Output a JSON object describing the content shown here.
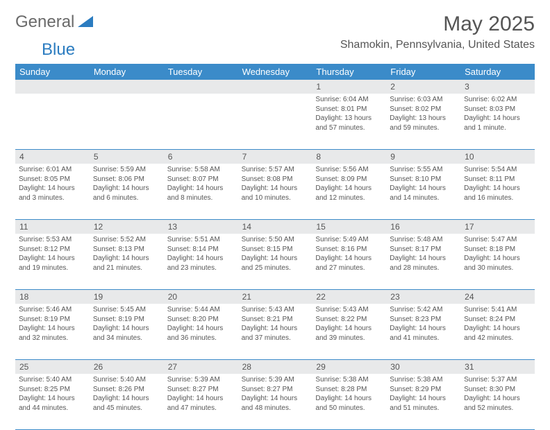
{
  "logo": {
    "text1": "General",
    "text2": "Blue"
  },
  "title": {
    "month": "May 2025",
    "location": "Shamokin, Pennsylvania, United States"
  },
  "weekdays": [
    "Sunday",
    "Monday",
    "Tuesday",
    "Wednesday",
    "Thursday",
    "Friday",
    "Saturday"
  ],
  "colors": {
    "header_bg": "#3b8bc9",
    "header_text": "#ffffff",
    "daynum_bg": "#e8e9ea",
    "text": "#555555",
    "logo_gray": "#6a6a6a",
    "logo_blue": "#2b7cc0",
    "border": "#3b8bc9"
  },
  "weeks": [
    [
      {
        "day": "",
        "lines": []
      },
      {
        "day": "",
        "lines": []
      },
      {
        "day": "",
        "lines": []
      },
      {
        "day": "",
        "lines": []
      },
      {
        "day": "1",
        "lines": [
          "Sunrise: 6:04 AM",
          "Sunset: 8:01 PM",
          "Daylight: 13 hours",
          "and 57 minutes."
        ]
      },
      {
        "day": "2",
        "lines": [
          "Sunrise: 6:03 AM",
          "Sunset: 8:02 PM",
          "Daylight: 13 hours",
          "and 59 minutes."
        ]
      },
      {
        "day": "3",
        "lines": [
          "Sunrise: 6:02 AM",
          "Sunset: 8:03 PM",
          "Daylight: 14 hours",
          "and 1 minute."
        ]
      }
    ],
    [
      {
        "day": "4",
        "lines": [
          "Sunrise: 6:01 AM",
          "Sunset: 8:05 PM",
          "Daylight: 14 hours",
          "and 3 minutes."
        ]
      },
      {
        "day": "5",
        "lines": [
          "Sunrise: 5:59 AM",
          "Sunset: 8:06 PM",
          "Daylight: 14 hours",
          "and 6 minutes."
        ]
      },
      {
        "day": "6",
        "lines": [
          "Sunrise: 5:58 AM",
          "Sunset: 8:07 PM",
          "Daylight: 14 hours",
          "and 8 minutes."
        ]
      },
      {
        "day": "7",
        "lines": [
          "Sunrise: 5:57 AM",
          "Sunset: 8:08 PM",
          "Daylight: 14 hours",
          "and 10 minutes."
        ]
      },
      {
        "day": "8",
        "lines": [
          "Sunrise: 5:56 AM",
          "Sunset: 8:09 PM",
          "Daylight: 14 hours",
          "and 12 minutes."
        ]
      },
      {
        "day": "9",
        "lines": [
          "Sunrise: 5:55 AM",
          "Sunset: 8:10 PM",
          "Daylight: 14 hours",
          "and 14 minutes."
        ]
      },
      {
        "day": "10",
        "lines": [
          "Sunrise: 5:54 AM",
          "Sunset: 8:11 PM",
          "Daylight: 14 hours",
          "and 16 minutes."
        ]
      }
    ],
    [
      {
        "day": "11",
        "lines": [
          "Sunrise: 5:53 AM",
          "Sunset: 8:12 PM",
          "Daylight: 14 hours",
          "and 19 minutes."
        ]
      },
      {
        "day": "12",
        "lines": [
          "Sunrise: 5:52 AM",
          "Sunset: 8:13 PM",
          "Daylight: 14 hours",
          "and 21 minutes."
        ]
      },
      {
        "day": "13",
        "lines": [
          "Sunrise: 5:51 AM",
          "Sunset: 8:14 PM",
          "Daylight: 14 hours",
          "and 23 minutes."
        ]
      },
      {
        "day": "14",
        "lines": [
          "Sunrise: 5:50 AM",
          "Sunset: 8:15 PM",
          "Daylight: 14 hours",
          "and 25 minutes."
        ]
      },
      {
        "day": "15",
        "lines": [
          "Sunrise: 5:49 AM",
          "Sunset: 8:16 PM",
          "Daylight: 14 hours",
          "and 27 minutes."
        ]
      },
      {
        "day": "16",
        "lines": [
          "Sunrise: 5:48 AM",
          "Sunset: 8:17 PM",
          "Daylight: 14 hours",
          "and 28 minutes."
        ]
      },
      {
        "day": "17",
        "lines": [
          "Sunrise: 5:47 AM",
          "Sunset: 8:18 PM",
          "Daylight: 14 hours",
          "and 30 minutes."
        ]
      }
    ],
    [
      {
        "day": "18",
        "lines": [
          "Sunrise: 5:46 AM",
          "Sunset: 8:19 PM",
          "Daylight: 14 hours",
          "and 32 minutes."
        ]
      },
      {
        "day": "19",
        "lines": [
          "Sunrise: 5:45 AM",
          "Sunset: 8:19 PM",
          "Daylight: 14 hours",
          "and 34 minutes."
        ]
      },
      {
        "day": "20",
        "lines": [
          "Sunrise: 5:44 AM",
          "Sunset: 8:20 PM",
          "Daylight: 14 hours",
          "and 36 minutes."
        ]
      },
      {
        "day": "21",
        "lines": [
          "Sunrise: 5:43 AM",
          "Sunset: 8:21 PM",
          "Daylight: 14 hours",
          "and 37 minutes."
        ]
      },
      {
        "day": "22",
        "lines": [
          "Sunrise: 5:43 AM",
          "Sunset: 8:22 PM",
          "Daylight: 14 hours",
          "and 39 minutes."
        ]
      },
      {
        "day": "23",
        "lines": [
          "Sunrise: 5:42 AM",
          "Sunset: 8:23 PM",
          "Daylight: 14 hours",
          "and 41 minutes."
        ]
      },
      {
        "day": "24",
        "lines": [
          "Sunrise: 5:41 AM",
          "Sunset: 8:24 PM",
          "Daylight: 14 hours",
          "and 42 minutes."
        ]
      }
    ],
    [
      {
        "day": "25",
        "lines": [
          "Sunrise: 5:40 AM",
          "Sunset: 8:25 PM",
          "Daylight: 14 hours",
          "and 44 minutes."
        ]
      },
      {
        "day": "26",
        "lines": [
          "Sunrise: 5:40 AM",
          "Sunset: 8:26 PM",
          "Daylight: 14 hours",
          "and 45 minutes."
        ]
      },
      {
        "day": "27",
        "lines": [
          "Sunrise: 5:39 AM",
          "Sunset: 8:27 PM",
          "Daylight: 14 hours",
          "and 47 minutes."
        ]
      },
      {
        "day": "28",
        "lines": [
          "Sunrise: 5:39 AM",
          "Sunset: 8:27 PM",
          "Daylight: 14 hours",
          "and 48 minutes."
        ]
      },
      {
        "day": "29",
        "lines": [
          "Sunrise: 5:38 AM",
          "Sunset: 8:28 PM",
          "Daylight: 14 hours",
          "and 50 minutes."
        ]
      },
      {
        "day": "30",
        "lines": [
          "Sunrise: 5:38 AM",
          "Sunset: 8:29 PM",
          "Daylight: 14 hours",
          "and 51 minutes."
        ]
      },
      {
        "day": "31",
        "lines": [
          "Sunrise: 5:37 AM",
          "Sunset: 8:30 PM",
          "Daylight: 14 hours",
          "and 52 minutes."
        ]
      }
    ]
  ]
}
